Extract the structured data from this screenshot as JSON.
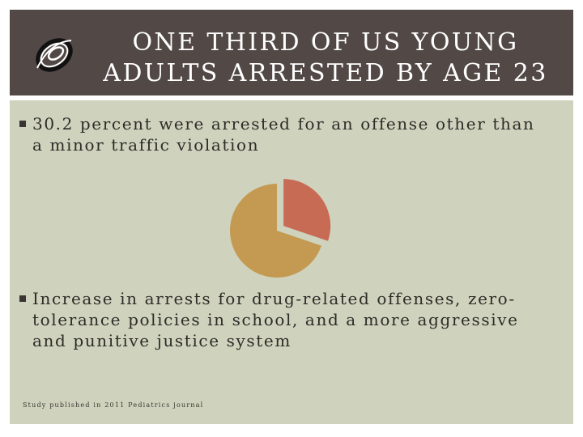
{
  "slide": {
    "title": "ONE THIRD OF US YOUNG ADULTS ARRESTED BY AGE 23",
    "bullets": [
      "30.2 percent were arrested for an offense other than a minor traffic violation",
      "Increase in arrests for drug-related offenses, zero-tolerance policies in school, and a more aggressive and punitive justice system"
    ],
    "footnote": "Study published in 2011 Pediatrics journal"
  },
  "colors": {
    "header_bg": "#524946",
    "content_bg": "#cfd3bd",
    "pie_arrested": "#c86b55",
    "pie_other": "#c49a52"
  },
  "icons": {
    "logo": "swirl-logo-icon",
    "bullet": "square-bullet-icon"
  },
  "chart_data": {
    "type": "pie",
    "values": [
      30.2,
      69.8
    ],
    "exploded": [
      true,
      false
    ],
    "title": ""
  }
}
